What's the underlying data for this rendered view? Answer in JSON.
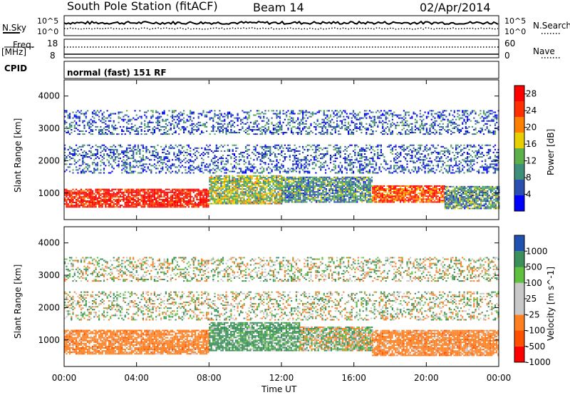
{
  "header": {
    "station": "South Pole Station (fitACF)",
    "beam": "Beam 14",
    "date": "02/Apr/2014"
  },
  "top_panels": {
    "nsky_label": "N.Sky",
    "nsearch_label": "N.Search",
    "noise_ticks": [
      "10^5",
      "10^0"
    ],
    "freq_label_1": "Freq.",
    "freq_label_2": "[MHz]",
    "freq_ticks": [
      "18",
      "8"
    ],
    "nave_label": "Nave",
    "nave_ticks": [
      "60",
      "0"
    ],
    "cpid_label": "CPID",
    "cpid_value": "normal (fast) 151 RF"
  },
  "colors": {
    "power": [
      "#0000ff",
      "#2b4fb0",
      "#3e8f7a",
      "#5cb04a",
      "#e8d000",
      "#ff8000",
      "#ff3000",
      "#ff0000"
    ],
    "velocity": [
      "#ff0000",
      "#ff5000",
      "#ff8020",
      "#c8c8c8",
      "#c8c8c8",
      "#60c040",
      "#3a8f5a",
      "#2050b0"
    ]
  },
  "chart_data": [
    {
      "type": "heatmap",
      "title": "",
      "xlabel": "",
      "ylabel": "Slant Range [km]",
      "x_range": [
        "00:00",
        "00:00"
      ],
      "ylim": [
        180,
        4500
      ],
      "y_ticks": [
        1000,
        2000,
        3000,
        4000
      ],
      "x_ticks": [
        "00:00",
        "04:00",
        "08:00",
        "12:00",
        "16:00",
        "20:00",
        "00:00"
      ],
      "colorbar": {
        "label": "Power [dB]",
        "ticks": [
          4,
          8,
          12,
          16,
          20,
          24,
          28
        ],
        "range": [
          0,
          30
        ]
      },
      "bands": [
        {
          "t0": 0,
          "t1": 8,
          "r0": 550,
          "r1": 1100,
          "value": 28
        },
        {
          "t0": 8,
          "t1": 12,
          "r0": 650,
          "r1": 1550,
          "value": 14
        },
        {
          "t0": 12,
          "t1": 17,
          "r0": 700,
          "r1": 1500,
          "value": 10
        },
        {
          "t0": 17,
          "t1": 21,
          "r0": 700,
          "r1": 1200,
          "value": 24
        },
        {
          "t0": 21,
          "t1": 24,
          "r0": 500,
          "r1": 1200,
          "value": 10
        },
        {
          "t0": 0,
          "t1": 24,
          "r0": 1600,
          "r1": 2500,
          "value": 6
        },
        {
          "t0": 0,
          "t1": 24,
          "r0": 2800,
          "r1": 3550,
          "value": 6
        }
      ]
    },
    {
      "type": "heatmap",
      "title": "",
      "xlabel": "Time UT",
      "ylabel": "Slant Range [km]",
      "x_range": [
        "00:00",
        "00:00"
      ],
      "ylim": [
        180,
        4500
      ],
      "y_ticks": [
        1000,
        2000,
        3000,
        4000
      ],
      "x_ticks": [
        "00:00",
        "04:00",
        "08:00",
        "12:00",
        "16:00",
        "20:00",
        "00:00"
      ],
      "colorbar": {
        "label": "Velocity [m s^-1]",
        "ticks": [
          1000,
          500,
          100,
          25,
          -25,
          -100,
          -500,
          -1000
        ]
      },
      "bands": [
        {
          "t0": 0,
          "t1": 8,
          "r0": 550,
          "r1": 1300,
          "value": -300
        },
        {
          "t0": 8,
          "t1": 13,
          "r0": 650,
          "r1": 1550,
          "value": 200
        },
        {
          "t0": 13,
          "t1": 17,
          "r0": 650,
          "r1": 1400,
          "value": 0
        },
        {
          "t0": 17,
          "t1": 24,
          "r0": 500,
          "r1": 1300,
          "value": -300
        },
        {
          "t0": 0,
          "t1": 24,
          "r0": 1600,
          "r1": 2500,
          "value": 0
        },
        {
          "t0": 0,
          "t1": 24,
          "r0": 2800,
          "r1": 3550,
          "value": 0
        }
      ]
    }
  ]
}
